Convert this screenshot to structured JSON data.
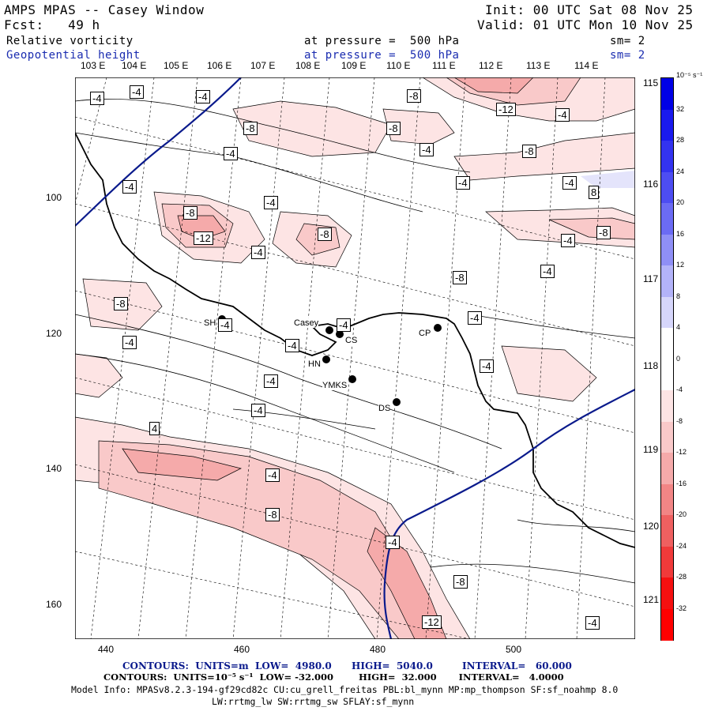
{
  "header": {
    "title": "AMPS MPAS -- Casey Window",
    "fcst": "Fcst:   49 h",
    "init": "Init: 00 UTC Sat 08 Nov 25",
    "valid": "Valid: 01 UTC Mon 10 Nov 25",
    "field1_name": "Relative vorticity",
    "field1_level": "at pressure =  500 hPa",
    "field1_sm": "sm= 2",
    "field2_name": "Geopotential height",
    "field2_level": "at pressure =  500 hPa",
    "field2_sm": "sm= 2"
  },
  "map": {
    "top_longitudes": [
      "103 E",
      "104 E",
      "105 E",
      "106 E",
      "107 E",
      "108 E",
      "109 E",
      "110 E",
      "111 E",
      "112 E",
      "113 E",
      "114 E"
    ],
    "right_longitudes": [
      "115 E",
      "116 E",
      "117 E",
      "118 E",
      "119 E",
      "120 E",
      "121 E"
    ],
    "y_ticks": [
      "100",
      "120",
      "140",
      "160"
    ],
    "x_ticks": [
      "440",
      "460",
      "480",
      "500"
    ],
    "stations": [
      {
        "name": "SH"
      },
      {
        "name": "Casey"
      },
      {
        "name": "CS"
      },
      {
        "name": "CP"
      },
      {
        "name": "HN"
      },
      {
        "name": "YMKS"
      },
      {
        "name": "DS"
      }
    ],
    "contour_labels": [
      "-4",
      "-4",
      "-4",
      "-8",
      "-12",
      "-4",
      "-8",
      "-8",
      "-4",
      "-4",
      "-8",
      "-4",
      "-8",
      "-4",
      "-4",
      "8",
      "-4",
      "-8",
      "-8",
      "-12",
      "-4",
      "-8",
      "-4",
      "-8",
      "-4",
      "-4",
      "-4",
      "-4",
      "-4",
      "-4",
      "-4",
      "-4",
      "-4",
      "4",
      "-4",
      "-8",
      "-4",
      "-8",
      "-4",
      "-12",
      "-4"
    ],
    "colors": {
      "coast": "#000000",
      "height_contour": "#0a1a8c",
      "vort_contour": "#000000"
    }
  },
  "colorbar": {
    "unit": "10⁻⁵ s⁻¹",
    "labels": [
      "32",
      "28",
      "24",
      "20",
      "16",
      "12",
      "8",
      "4",
      "0",
      "-4",
      "-8",
      "-12",
      "-16",
      "-20",
      "-24",
      "-28",
      "-32"
    ],
    "colors": [
      "#0000e6",
      "#1a1aee",
      "#3333f0",
      "#4d4df2",
      "#6b6bf4",
      "#8f8ff6",
      "#b3b3f9",
      "#d6d6fb",
      "#ffffff",
      "#ffffff",
      "#fde4e4",
      "#f9c9c9",
      "#f5aaaa",
      "#f28585",
      "#ef6060",
      "#f03a3a",
      "#f51010",
      "#ff0000"
    ]
  },
  "footer": {
    "line1a": "CONTOURS:  UNITS=m  LOW=  4980.0",
    "line1b": "HIGH=  5040.0",
    "line1c": "INTERVAL=   60.000",
    "line2": "CONTOURS:  UNITS=10⁻⁵ s⁻¹  LOW= -32.000        HIGH=  32.000       INTERVAL=   4.0000",
    "line3": "Model Info: MPASv8.2.3-194-gf29cd82c CU:cu_grell_freitas PBL:bl_mynn MP:mp_thompson SF:sf_noahmp 8.0",
    "line4": "LW:rrtmg_lw SW:rrtmg_sw SFLAY:sf_mynn"
  }
}
